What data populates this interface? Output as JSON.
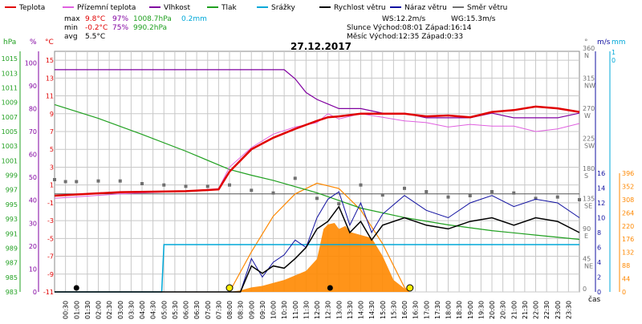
{
  "legend": [
    {
      "label": "Teplota",
      "color": "#e00000"
    },
    {
      "label": "Přízemní teplota",
      "color": "#e060e0"
    },
    {
      "label": "Vlhkost",
      "color": "#8000a0"
    },
    {
      "label": "Tlak",
      "color": "#20a020"
    },
    {
      "label": "Srážky",
      "color": "#00a8d8"
    },
    {
      "label": "Rychlost větru",
      "color": "#000000"
    },
    {
      "label": "Náraz větru",
      "color": "#1010a0"
    },
    {
      "label": "Směr větru",
      "color": "#707070"
    }
  ],
  "stats": {
    "max_label": "max",
    "max_temp": "9.8°C",
    "max_hum": "97%",
    "max_press": "1008.7hPa",
    "max_rain": "0.2mm",
    "min_label": "min",
    "min_temp": "-0.2°C",
    "min_hum": "75%",
    "min_press": "990.2hPa",
    "avg_label": "avg",
    "avg_temp": "5.5°C"
  },
  "wind_info": {
    "ws": "WS:12.2m/s",
    "wg": "WG:15.3m/s",
    "sun": "Slunce  Východ:08:01  Západ:16:14",
    "moon": "Měsíc  Východ:12:35  Západ:0:33"
  },
  "date": "27.12.2017",
  "axes": {
    "hpa_title": "hPa",
    "pct_title": "%",
    "c_title": "°C",
    "deg_title": "°",
    "ms_title": "m/s",
    "mm_title": "mm",
    "time_title": "čas"
  },
  "colors": {
    "temp": "#e00000",
    "ground": "#e060e0",
    "hum": "#8000a0",
    "press": "#20a020",
    "rain": "#00a8d8",
    "speed": "#000000",
    "gust": "#1010a0",
    "dir": "#707070",
    "sun": "#ff8800",
    "grid": "#c8c8c8"
  },
  "chart_data": {
    "type": "line",
    "x_unit": "hour",
    "x_ticks": [
      "00:30",
      "01:00",
      "01:30",
      "02:00",
      "02:30",
      "03:00",
      "03:30",
      "04:00",
      "04:30",
      "05:00",
      "05:30",
      "06:00",
      "06:30",
      "07:00",
      "07:30",
      "08:00",
      "08:30",
      "09:00",
      "09:30",
      "10:00",
      "10:30",
      "11:00",
      "11:30",
      "12:00",
      "12:30",
      "13:00",
      "13:30",
      "14:00",
      "14:30",
      "15:00",
      "15:30",
      "16:00",
      "16:30",
      "17:00",
      "17:30",
      "18:00",
      "18:30",
      "19:00",
      "19:30",
      "20:00",
      "20:30",
      "21:00",
      "21:30",
      "22:00",
      "22:30",
      "23:00",
      "23:30"
    ],
    "axis_hpa": {
      "range": [
        983,
        1016
      ],
      "ticks": [
        "1015",
        "1013",
        "1011",
        "1009",
        "1007",
        "1005",
        "1003",
        "1001",
        "999",
        "997",
        "995",
        "993",
        "991",
        "989",
        "987",
        "985",
        "983"
      ]
    },
    "axis_pct": {
      "range": [
        0,
        105
      ],
      "ticks": [
        "100",
        "90",
        "80",
        "70",
        "60",
        "50",
        "40",
        "30",
        "20",
        "10",
        "0"
      ]
    },
    "axis_c": {
      "range": [
        -11,
        16
      ],
      "ticks": [
        "15",
        "13",
        "11",
        "9",
        "7",
        "5",
        "3",
        "1",
        "-1",
        "-3",
        "-5",
        "-7",
        "-9",
        "-11"
      ]
    },
    "axis_dir": {
      "ticks": [
        {
          "deg": 360,
          "name": "N"
        },
        {
          "deg": 315,
          "name": "NW"
        },
        {
          "deg": 270,
          "name": "W"
        },
        {
          "deg": 225,
          "name": "SW"
        },
        {
          "deg": 180,
          "name": "S"
        },
        {
          "deg": 135,
          "name": "SE"
        },
        {
          "deg": 90,
          "name": "E"
        },
        {
          "deg": 45,
          "name": "NE"
        },
        {
          "deg": 0,
          "name": ""
        }
      ]
    },
    "axis_ms": {
      "range": [
        0,
        16
      ],
      "ticks": [
        "16",
        "14",
        "12",
        "10",
        "8",
        "6",
        "4",
        "2",
        "0"
      ]
    },
    "axis_mm_top": {
      "ticks": [
        "1",
        "0"
      ]
    },
    "axis_mm": {
      "range": [
        0,
        396
      ],
      "ticks": [
        "396",
        "352",
        "308",
        "264",
        "220",
        "176",
        "132",
        "88",
        "44",
        "0"
      ]
    },
    "series": [
      {
        "name": "Teplota",
        "axis": "c",
        "x": [
          0,
          3,
          6,
          7.5,
          8,
          9,
          10,
          11,
          12,
          12.5,
          13,
          14,
          15,
          16,
          17,
          18,
          19,
          20,
          21,
          22,
          23,
          24
        ],
        "values": [
          -0.2,
          0.2,
          0.3,
          0.5,
          2.5,
          5.0,
          6.3,
          7.3,
          8.2,
          8.6,
          8.7,
          9.0,
          9.0,
          9.0,
          8.7,
          8.8,
          8.6,
          9.2,
          9.4,
          9.8,
          9.6,
          9.2
        ]
      },
      {
        "name": "Přízemní teplota",
        "axis": "c",
        "x": [
          0,
          3,
          6,
          7.5,
          8,
          9,
          10,
          11,
          12,
          12.5,
          13,
          14,
          15,
          16,
          17,
          18,
          19,
          20,
          21,
          22,
          23,
          24
        ],
        "values": [
          -0.5,
          0.0,
          0.3,
          0.6,
          3.0,
          5.2,
          6.7,
          7.5,
          8.0,
          9.0,
          8.4,
          9.0,
          8.6,
          8.2,
          8.0,
          7.5,
          7.8,
          7.6,
          7.6,
          7.0,
          7.3,
          7.9
        ]
      },
      {
        "name": "Vlhkost",
        "axis": "pct",
        "x": [
          0,
          4,
          8,
          10.5,
          11,
          11.5,
          12,
          12.5,
          13,
          14,
          15,
          16,
          17,
          18,
          19,
          20,
          21,
          22,
          23,
          24
        ],
        "values": [
          97,
          97,
          97,
          97,
          93,
          87,
          84,
          82,
          80,
          80,
          78,
          78,
          76,
          76,
          76,
          78,
          76,
          76,
          76,
          78
        ]
      },
      {
        "name": "Tlak",
        "axis": "hpa",
        "x": [
          0,
          2,
          4,
          6,
          8,
          9,
          10,
          12,
          14,
          16,
          18,
          20,
          22,
          24
        ],
        "values": [
          1008.7,
          1006.8,
          1004.6,
          1002.3,
          999.8,
          999.0,
          998.3,
          996.6,
          994.5,
          993.2,
          992.2,
          991.4,
          990.8,
          990.2
        ]
      },
      {
        "name": "Srážky",
        "axis": "mm",
        "x": [
          0,
          4.9,
          5,
          24
        ],
        "values": [
          0,
          0,
          0.2,
          0.2
        ]
      },
      {
        "name": "Rychlost větru",
        "axis": "ms",
        "x": [
          0,
          8.5,
          9,
          9.5,
          10,
          10.5,
          11,
          11.5,
          12,
          12.5,
          13,
          13.5,
          14,
          14.5,
          15,
          16,
          17,
          18,
          19,
          20,
          21,
          22,
          23,
          24
        ],
        "values": [
          0,
          0,
          3.5,
          2.5,
          3.5,
          3.2,
          4.5,
          6.0,
          8.5,
          9.5,
          11.5,
          8.0,
          9.5,
          7.0,
          9.0,
          10.0,
          9.0,
          8.5,
          9.5,
          10.0,
          9.0,
          10.0,
          9.5,
          8.0
        ]
      },
      {
        "name": "Náraz větru",
        "axis": "ms",
        "x": [
          0,
          8.5,
          9,
          9.5,
          10,
          10.5,
          11,
          11.5,
          12,
          12.5,
          13,
          13.5,
          14,
          14.5,
          15,
          16,
          17,
          18,
          19,
          20,
          21,
          22,
          23,
          24
        ],
        "values": [
          0,
          0,
          4.5,
          2.0,
          4.0,
          5.0,
          7.0,
          6.0,
          10.0,
          12.5,
          13.5,
          9.0,
          12.0,
          8.0,
          10.5,
          13.0,
          11.0,
          10.0,
          12.0,
          13.0,
          11.5,
          12.5,
          12.0,
          10.0
        ]
      },
      {
        "name": "Směr větru",
        "axis": "deg",
        "x": [
          0,
          0.5,
          1,
          2,
          3,
          4,
          5,
          6,
          7,
          8,
          9,
          10,
          11,
          12,
          13,
          14,
          15,
          16,
          17,
          18,
          19,
          20,
          21,
          22,
          23,
          24
        ],
        "values": [
          168,
          165,
          165,
          166,
          166,
          162,
          160,
          158,
          158,
          160,
          152,
          148,
          170,
          140,
          132,
          160,
          145,
          155,
          150,
          142,
          144,
          150,
          148,
          140,
          142,
          138
        ]
      },
      {
        "name": "Sluneční záření",
        "axis": "rad",
        "x": [
          8,
          8.5,
          9,
          9.5,
          10,
          10.5,
          11,
          11.5,
          12,
          12.3,
          12.5,
          12.8,
          13,
          13.3,
          13.5,
          14,
          14.5,
          15,
          15.5,
          16.2
        ],
        "values": [
          0,
          5,
          15,
          20,
          30,
          40,
          55,
          70,
          110,
          210,
          225,
          230,
          210,
          220,
          200,
          190,
          180,
          120,
          40,
          0
        ]
      },
      {
        "name": "Sluneční oblouk",
        "axis": "c",
        "x": [
          8.0,
          9,
          10,
          11,
          12,
          13,
          14,
          15,
          16,
          16.2
        ],
        "values": [
          -11,
          -6.5,
          -2.5,
          0,
          1.2,
          0.6,
          -1.8,
          -5.6,
          -10.5,
          -11
        ]
      }
    ],
    "markers": [
      {
        "hour": 1,
        "icon": "moon"
      },
      {
        "hour": 8,
        "icon": "sunrise"
      },
      {
        "hour": 12.6,
        "icon": "moonrise"
      },
      {
        "hour": 16.25,
        "icon": "sunset"
      }
    ]
  }
}
